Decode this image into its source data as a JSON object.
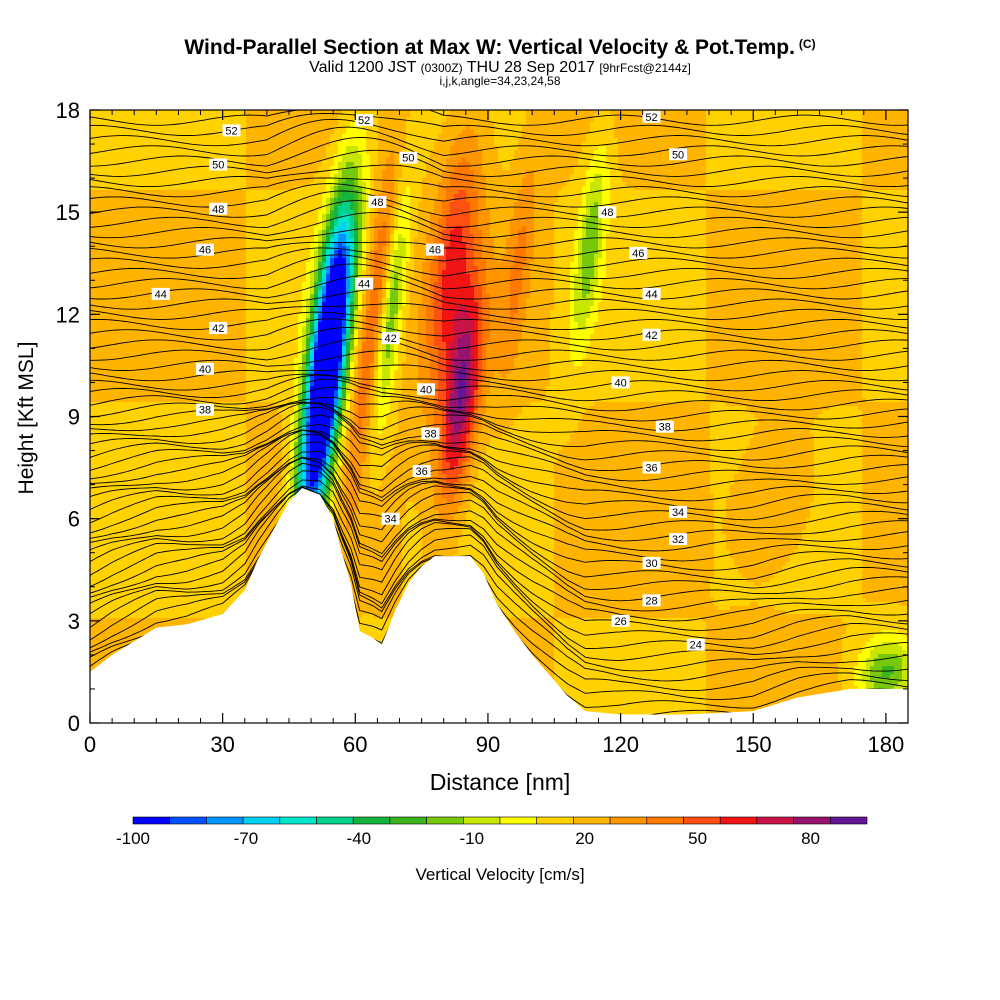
{
  "header": {
    "title_main": "Wind-Parallel Section at Max W: Vertical Velocity & Pot.Temp.",
    "title_mark": "(C)",
    "valid_prefix": "Valid 1200 JST",
    "valid_utc": "(0300Z)",
    "valid_date": "THU 28 Sep 2017",
    "forecast": "[9hrFcst@2144z]",
    "indices": "i,j,k,angle=34,23,24,58"
  },
  "chart_data": {
    "type": "heatmap",
    "xlabel": "Distance [nm]",
    "ylabel": "Height [Kft MSL]",
    "xlim": [
      0,
      185
    ],
    "ylim": [
      0,
      18
    ],
    "x_ticks": [
      0,
      30,
      60,
      90,
      120,
      150,
      180
    ],
    "y_ticks": [
      0,
      3,
      6,
      9,
      12,
      15,
      18
    ],
    "colorbar": {
      "label": "Vertical Velocity [cm/s]",
      "tick_labels": [
        -100,
        -70,
        -40,
        -10,
        20,
        50,
        80
      ],
      "bounds": [
        -100,
        95
      ],
      "step": 10,
      "colors": [
        "#0000ff",
        "#0050ff",
        "#0096ff",
        "#00d2f5",
        "#00e6c8",
        "#00d28c",
        "#14b43c",
        "#3cb41e",
        "#78c80a",
        "#c8e600",
        "#ffff00",
        "#ffd200",
        "#ffb400",
        "#ff9600",
        "#ff7800",
        "#ff5014",
        "#f01414",
        "#c81446",
        "#96146e",
        "#641496"
      ]
    },
    "terrain": [
      [
        0,
        1.5
      ],
      [
        5,
        2.0
      ],
      [
        10,
        2.4
      ],
      [
        15,
        2.8
      ],
      [
        22,
        2.9
      ],
      [
        30,
        3.2
      ],
      [
        35,
        3.9
      ],
      [
        38,
        4.8
      ],
      [
        42,
        5.8
      ],
      [
        45,
        6.5
      ],
      [
        48,
        6.9
      ],
      [
        52,
        6.7
      ],
      [
        55,
        6.0
      ],
      [
        57,
        5.0
      ],
      [
        59,
        4.1
      ],
      [
        61,
        2.7
      ],
      [
        64,
        2.5
      ],
      [
        66,
        2.3
      ],
      [
        69,
        3.3
      ],
      [
        72,
        4.1
      ],
      [
        75,
        4.6
      ],
      [
        78,
        4.9
      ],
      [
        86,
        4.9
      ],
      [
        89,
        4.4
      ],
      [
        92,
        3.5
      ],
      [
        96,
        2.7
      ],
      [
        100,
        2.0
      ],
      [
        104,
        1.4
      ],
      [
        108,
        0.8
      ],
      [
        112,
        0.35
      ],
      [
        120,
        0.25
      ],
      [
        135,
        0.25
      ],
      [
        150,
        0.35
      ],
      [
        160,
        0.75
      ],
      [
        172,
        1.0
      ],
      [
        185,
        1.0
      ]
    ],
    "vv_features": [
      {
        "x": 52,
        "y": 8.8,
        "vv": -95,
        "spread_x": 4,
        "spread_y": 4.5
      },
      {
        "x": 55,
        "y": 12.0,
        "vv": -70,
        "spread_x": 4,
        "spread_y": 4.0
      },
      {
        "x": 64,
        "y": 11.8,
        "vv": 55,
        "spread_x": 3,
        "spread_y": 4.5
      },
      {
        "x": 68,
        "y": 12.0,
        "vv": -20,
        "spread_x": 2.5,
        "spread_y": 3.5
      },
      {
        "x": 84,
        "y": 9.5,
        "vv": 88,
        "spread_x": 4,
        "spread_y": 3.0
      },
      {
        "x": 82,
        "y": 13.5,
        "vv": 60,
        "spread_x": 5,
        "spread_y": 4.0
      },
      {
        "x": 97,
        "y": 13.5,
        "vv": 40,
        "spread_x": 3,
        "spread_y": 3.5
      },
      {
        "x": 113,
        "y": 14.0,
        "vv": -15,
        "spread_x": 3,
        "spread_y": 3.0
      },
      {
        "x": 155,
        "y": 6.5,
        "vv": 35,
        "spread_x": 8,
        "spread_y": 1.8
      },
      {
        "x": 180,
        "y": 1.5,
        "vv": -20,
        "spread_x": 6,
        "spread_y": 1.0
      }
    ],
    "theta_labels": [
      {
        "x": 32,
        "y": 17.4,
        "text": "52"
      },
      {
        "x": 29,
        "y": 16.4,
        "text": "50"
      },
      {
        "x": 29,
        "y": 15.1,
        "text": "48"
      },
      {
        "x": 26,
        "y": 13.9,
        "text": "46"
      },
      {
        "x": 16,
        "y": 12.6,
        "text": "44"
      },
      {
        "x": 29,
        "y": 11.6,
        "text": "42"
      },
      {
        "x": 26,
        "y": 10.4,
        "text": "40"
      },
      {
        "x": 26,
        "y": 9.2,
        "text": "38"
      },
      {
        "x": 62,
        "y": 17.7,
        "text": "52"
      },
      {
        "x": 72,
        "y": 16.6,
        "text": "50"
      },
      {
        "x": 65,
        "y": 15.3,
        "text": "48"
      },
      {
        "x": 78,
        "y": 13.9,
        "text": "46"
      },
      {
        "x": 62,
        "y": 12.9,
        "text": "44"
      },
      {
        "x": 68,
        "y": 11.3,
        "text": "42"
      },
      {
        "x": 76,
        "y": 9.8,
        "text": "40"
      },
      {
        "x": 77,
        "y": 8.5,
        "text": "38"
      },
      {
        "x": 75,
        "y": 7.4,
        "text": "36"
      },
      {
        "x": 68,
        "y": 6.0,
        "text": "34"
      },
      {
        "x": 127,
        "y": 17.8,
        "text": "52"
      },
      {
        "x": 133,
        "y": 16.7,
        "text": "50"
      },
      {
        "x": 117,
        "y": 15.0,
        "text": "48"
      },
      {
        "x": 124,
        "y": 13.8,
        "text": "46"
      },
      {
        "x": 127,
        "y": 12.6,
        "text": "44"
      },
      {
        "x": 127,
        "y": 11.4,
        "text": "42"
      },
      {
        "x": 120,
        "y": 10.0,
        "text": "40"
      },
      {
        "x": 130,
        "y": 8.7,
        "text": "38"
      },
      {
        "x": 127,
        "y": 7.5,
        "text": "36"
      },
      {
        "x": 133,
        "y": 6.2,
        "text": "34"
      },
      {
        "x": 133,
        "y": 5.4,
        "text": "32"
      },
      {
        "x": 127,
        "y": 4.7,
        "text": "30"
      },
      {
        "x": 127,
        "y": 3.6,
        "text": "28"
      },
      {
        "x": 120,
        "y": 3.0,
        "text": "26"
      },
      {
        "x": 137,
        "y": 2.3,
        "text": "24"
      }
    ],
    "grid": false,
    "legend": "colorbar-bottom"
  }
}
